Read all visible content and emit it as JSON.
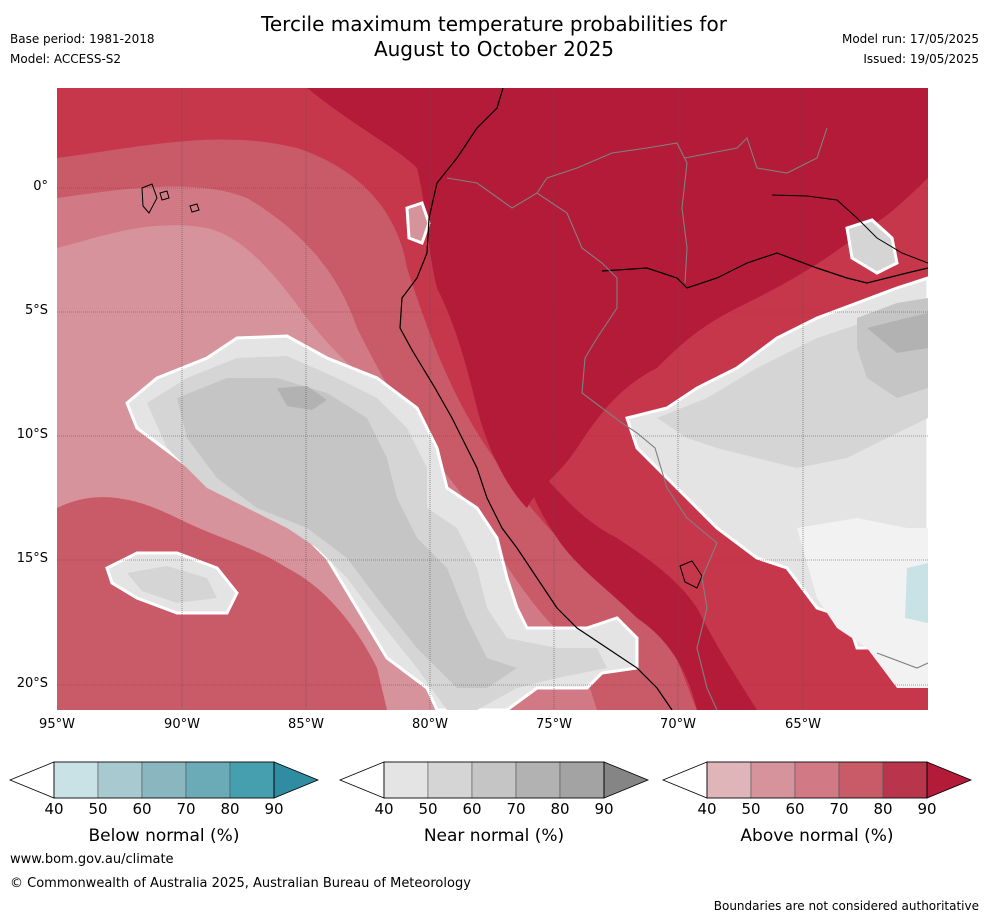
{
  "title": {
    "line1": "Tercile maximum temperature probabilities for",
    "line2": "August to October 2025"
  },
  "header_left": {
    "base_period": "Base period: 1981-2018",
    "model": "Model: ACCESS-S2"
  },
  "header_right": {
    "model_run": "Model run: 17/05/2025",
    "issued": "Issued: 19/05/2025"
  },
  "map": {
    "lat_labels": [
      "0°",
      "5°S",
      "10°S",
      "15°S",
      "20°S"
    ],
    "lon_labels": [
      "95°W",
      "90°W",
      "85°W",
      "80°W",
      "75°W",
      "70°W",
      "65°W"
    ],
    "colors": {
      "above_90": "#b31b38",
      "above_80": "#c6374b",
      "above_70": "#c95a68",
      "above_60": "#d17a85",
      "above_50": "#d6939b",
      "above_40": "#e0b5ba",
      "near_50": "#e4e4e4",
      "near_60": "#d5d5d5",
      "near_70": "#c5c5c5",
      "near_80": "#b2b2b2",
      "near_90": "#a3a3a3",
      "below_50": "#c9e2e6",
      "coast": "#000000",
      "border": "#808080",
      "grid": "#555555"
    }
  },
  "colorbars": [
    {
      "label": "Below normal (%)",
      "ticks": [
        "40",
        "50",
        "60",
        "70",
        "80",
        "90"
      ],
      "colors": [
        "#c9e2e6",
        "#a7c9cf",
        "#8ab6c0",
        "#6aabb7",
        "#469faf",
        "#2f8ca1"
      ]
    },
    {
      "label": "Near normal (%)",
      "ticks": [
        "40",
        "50",
        "60",
        "70",
        "80",
        "90"
      ],
      "colors": [
        "#e4e4e4",
        "#d5d5d5",
        "#c5c5c5",
        "#b2b2b2",
        "#a3a3a3",
        "#858585"
      ]
    },
    {
      "label": "Above normal (%)",
      "ticks": [
        "40",
        "50",
        "60",
        "70",
        "80",
        "90"
      ],
      "colors": [
        "#e0b5ba",
        "#d6939b",
        "#d17a85",
        "#c95a68",
        "#b8354c",
        "#b31b38"
      ]
    }
  ],
  "footer": {
    "url": "www.bom.gov.au/climate",
    "copyright": "© Commonwealth of Australia 2025, Australian Bureau of Meteorology",
    "note": "Boundaries are not considered authoritative"
  }
}
